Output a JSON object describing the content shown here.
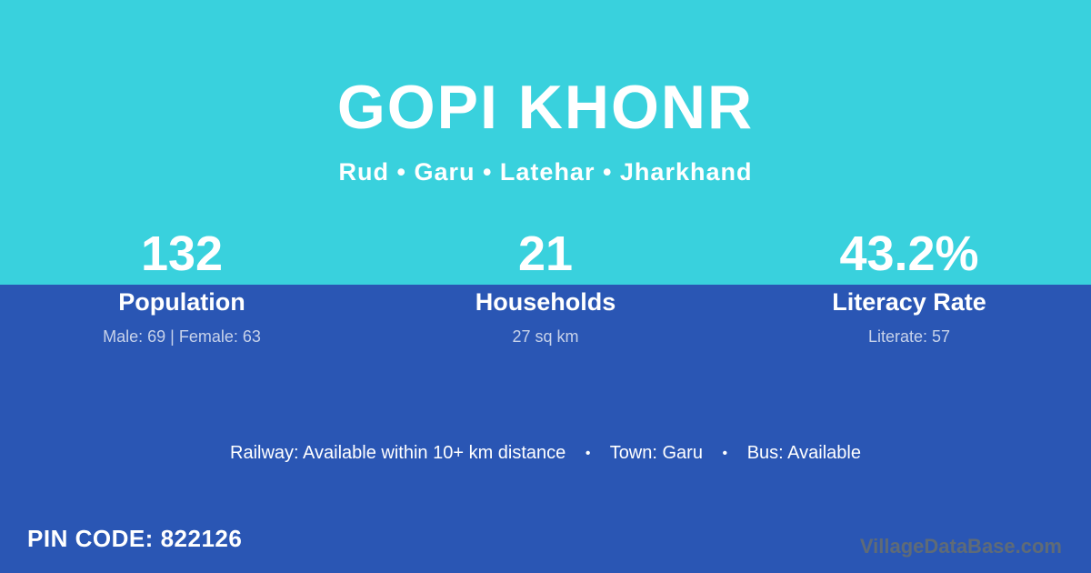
{
  "header": {
    "title": "GOPI KHONR",
    "subtitle": "Rud • Garu • Latehar • Jharkhand"
  },
  "stats": [
    {
      "value": "132",
      "label": "Population",
      "sub": "Male: 69 | Female: 63"
    },
    {
      "value": "21",
      "label": "Households",
      "sub": "27 sq km"
    },
    {
      "value": "43.2%",
      "label": "Literacy Rate",
      "sub": "Literate: 57"
    }
  ],
  "facts": {
    "railway": "Railway: Available within 10+ km distance",
    "town": "Town: Garu",
    "bus": "Bus: Available",
    "separator": "•"
  },
  "footer": {
    "pin_code": "PIN CODE: 822126",
    "watermark": "VillageDataBase.com"
  },
  "colors": {
    "top_background": "#39d1dd",
    "bottom_background": "#2a56b4",
    "text": "#ffffff",
    "muted_text": "#c7d2ea"
  }
}
